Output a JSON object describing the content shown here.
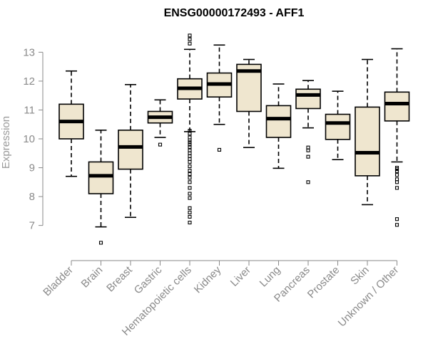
{
  "chart_data": {
    "type": "boxplot",
    "title": "ENSG00000172493 - AFF1",
    "xlabel": "",
    "ylabel": "Expression",
    "ylim": [
      6.3,
      13.7
    ],
    "yticks": [
      7,
      8,
      9,
      10,
      11,
      12,
      13
    ],
    "grid": false,
    "box_fill": "#efe6cf",
    "categories": [
      "Bladder",
      "Brain",
      "Breast",
      "Gastric",
      "Hematopoietic cells",
      "Kidney",
      "Liver",
      "Lung",
      "Pancreas",
      "Prostate",
      "Skin",
      "Unknown / Other"
    ],
    "boxes": [
      {
        "category": "Bladder",
        "whisker_low": 8.7,
        "q1": 10.0,
        "median": 10.6,
        "q3": 11.2,
        "whisker_high": 12.35,
        "outliers": []
      },
      {
        "category": "Brain",
        "whisker_low": 6.95,
        "q1": 8.1,
        "median": 8.72,
        "q3": 9.2,
        "whisker_high": 10.3,
        "outliers": [
          6.4
        ]
      },
      {
        "category": "Breast",
        "whisker_low": 7.28,
        "q1": 8.95,
        "median": 9.72,
        "q3": 10.3,
        "whisker_high": 11.88,
        "outliers": []
      },
      {
        "category": "Gastric",
        "whisker_low": 10.05,
        "q1": 10.55,
        "median": 10.75,
        "q3": 10.95,
        "whisker_high": 11.35,
        "outliers": [
          9.8
        ]
      },
      {
        "category": "Hematopoietic cells",
        "whisker_low": 10.25,
        "q1": 11.38,
        "median": 11.75,
        "q3": 12.08,
        "whisker_high": 13.1,
        "outliers": [
          13.58,
          13.45,
          13.3,
          10.28,
          10.18,
          10.05,
          9.95,
          9.88,
          9.8,
          9.72,
          9.6,
          9.5,
          9.4,
          9.3,
          9.2,
          9.05,
          8.9,
          8.78,
          8.65,
          8.5,
          8.3,
          8.1,
          7.95,
          7.6,
          7.45,
          7.3,
          7.1
        ]
      },
      {
        "category": "Kidney",
        "whisker_low": 10.5,
        "q1": 11.45,
        "median": 11.9,
        "q3": 12.28,
        "whisker_high": 13.25,
        "outliers": [
          9.62
        ]
      },
      {
        "category": "Liver",
        "whisker_low": 9.7,
        "q1": 10.95,
        "median": 12.35,
        "q3": 12.58,
        "whisker_high": 12.75,
        "outliers": []
      },
      {
        "category": "Lung",
        "whisker_low": 8.98,
        "q1": 10.05,
        "median": 10.7,
        "q3": 11.15,
        "whisker_high": 11.9,
        "outliers": []
      },
      {
        "category": "Pancreas",
        "whisker_low": 10.38,
        "q1": 11.05,
        "median": 11.52,
        "q3": 11.72,
        "whisker_high": 12.02,
        "outliers": [
          9.7,
          9.6,
          9.38,
          8.5
        ]
      },
      {
        "category": "Prostate",
        "whisker_low": 9.28,
        "q1": 9.98,
        "median": 10.55,
        "q3": 10.85,
        "whisker_high": 11.65,
        "outliers": []
      },
      {
        "category": "Skin",
        "whisker_low": 7.72,
        "q1": 8.72,
        "median": 9.52,
        "q3": 11.1,
        "whisker_high": 12.75,
        "outliers": []
      },
      {
        "category": "Unknown / Other",
        "whisker_low": 9.2,
        "q1": 10.62,
        "median": 11.22,
        "q3": 11.62,
        "whisker_high": 13.12,
        "outliers": [
          9.0,
          8.95,
          8.88,
          8.75,
          8.6,
          8.5,
          8.3,
          7.22,
          7.02
        ]
      }
    ]
  }
}
